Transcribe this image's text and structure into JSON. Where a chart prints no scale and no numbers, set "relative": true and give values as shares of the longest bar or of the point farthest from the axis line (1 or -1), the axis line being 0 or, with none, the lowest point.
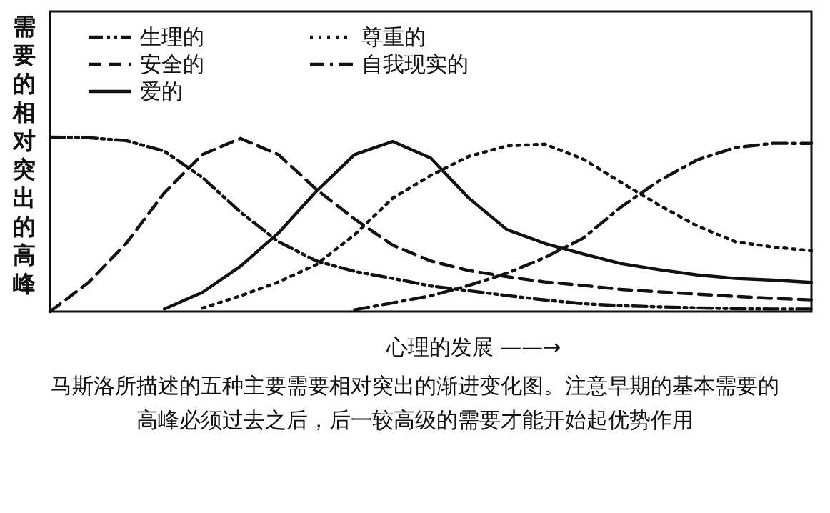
{
  "chart_data": {
    "type": "line",
    "relative": true,
    "ylabel": "需要的相对突出的高峰",
    "xlabel": "心理的发展 ——→",
    "legend": "top left",
    "annotations": [
      "马斯洛所描述的五种主要需要相对突出的渐进变化图。注意早期的基本需要的高峰必须过去之后，后一较高级的需要才能开始起优势作用"
    ],
    "categories": [
      null,
      null,
      null,
      null,
      null,
      null,
      null,
      null,
      null,
      null,
      null,
      null,
      null,
      null,
      null,
      null,
      null,
      null,
      null,
      null,
      null
    ],
    "series": [
      {
        "name": "生理的",
        "color": "#111111",
        "line_style": "dashdotdot",
        "values": [
          1.0,
          0.997,
          0.98,
          0.92,
          0.77,
          0.57,
          0.4,
          0.29,
          0.23,
          0.19,
          0.147,
          0.12,
          0.092,
          0.066,
          0.045,
          0.034,
          0.027,
          0.021,
          0.016,
          0.015,
          0.015
        ]
      },
      {
        "name": "安全的",
        "color": "#111111",
        "line_style": "dashed",
        "values": [
          0,
          0.165,
          0.39,
          0.68,
          0.9,
          0.993,
          0.9,
          0.7,
          0.53,
          0.38,
          0.29,
          0.235,
          0.2,
          0.17,
          0.15,
          0.127,
          0.113,
          0.1,
          0.087,
          0.075,
          0.067
        ]
      },
      {
        "name": "爱的",
        "color": "#111111",
        "line_style": "solid",
        "values": [
          null,
          null,
          null,
          0.015,
          0.11,
          0.26,
          0.45,
          0.69,
          0.9,
          0.975,
          0.88,
          0.65,
          0.47,
          0.39,
          0.33,
          0.275,
          0.24,
          0.21,
          0.19,
          0.18,
          0.167
        ]
      },
      {
        "name": "尊重的",
        "color": "#111111",
        "line_style": "dotted",
        "values": [
          null,
          null,
          null,
          null,
          0.02,
          0.09,
          0.17,
          0.27,
          0.44,
          0.65,
          0.78,
          0.89,
          0.95,
          0.96,
          0.875,
          0.74,
          0.61,
          0.49,
          0.4,
          0.37,
          0.348
        ]
      },
      {
        "name": "自我现实的",
        "color": "#111111",
        "line_style": "dashdot",
        "values": [
          null,
          null,
          null,
          null,
          null,
          null,
          null,
          null,
          0.01,
          0.05,
          0.09,
          0.15,
          0.22,
          0.31,
          0.42,
          0.6,
          0.75,
          0.87,
          0.94,
          0.965,
          0.964
        ]
      }
    ]
  }
}
